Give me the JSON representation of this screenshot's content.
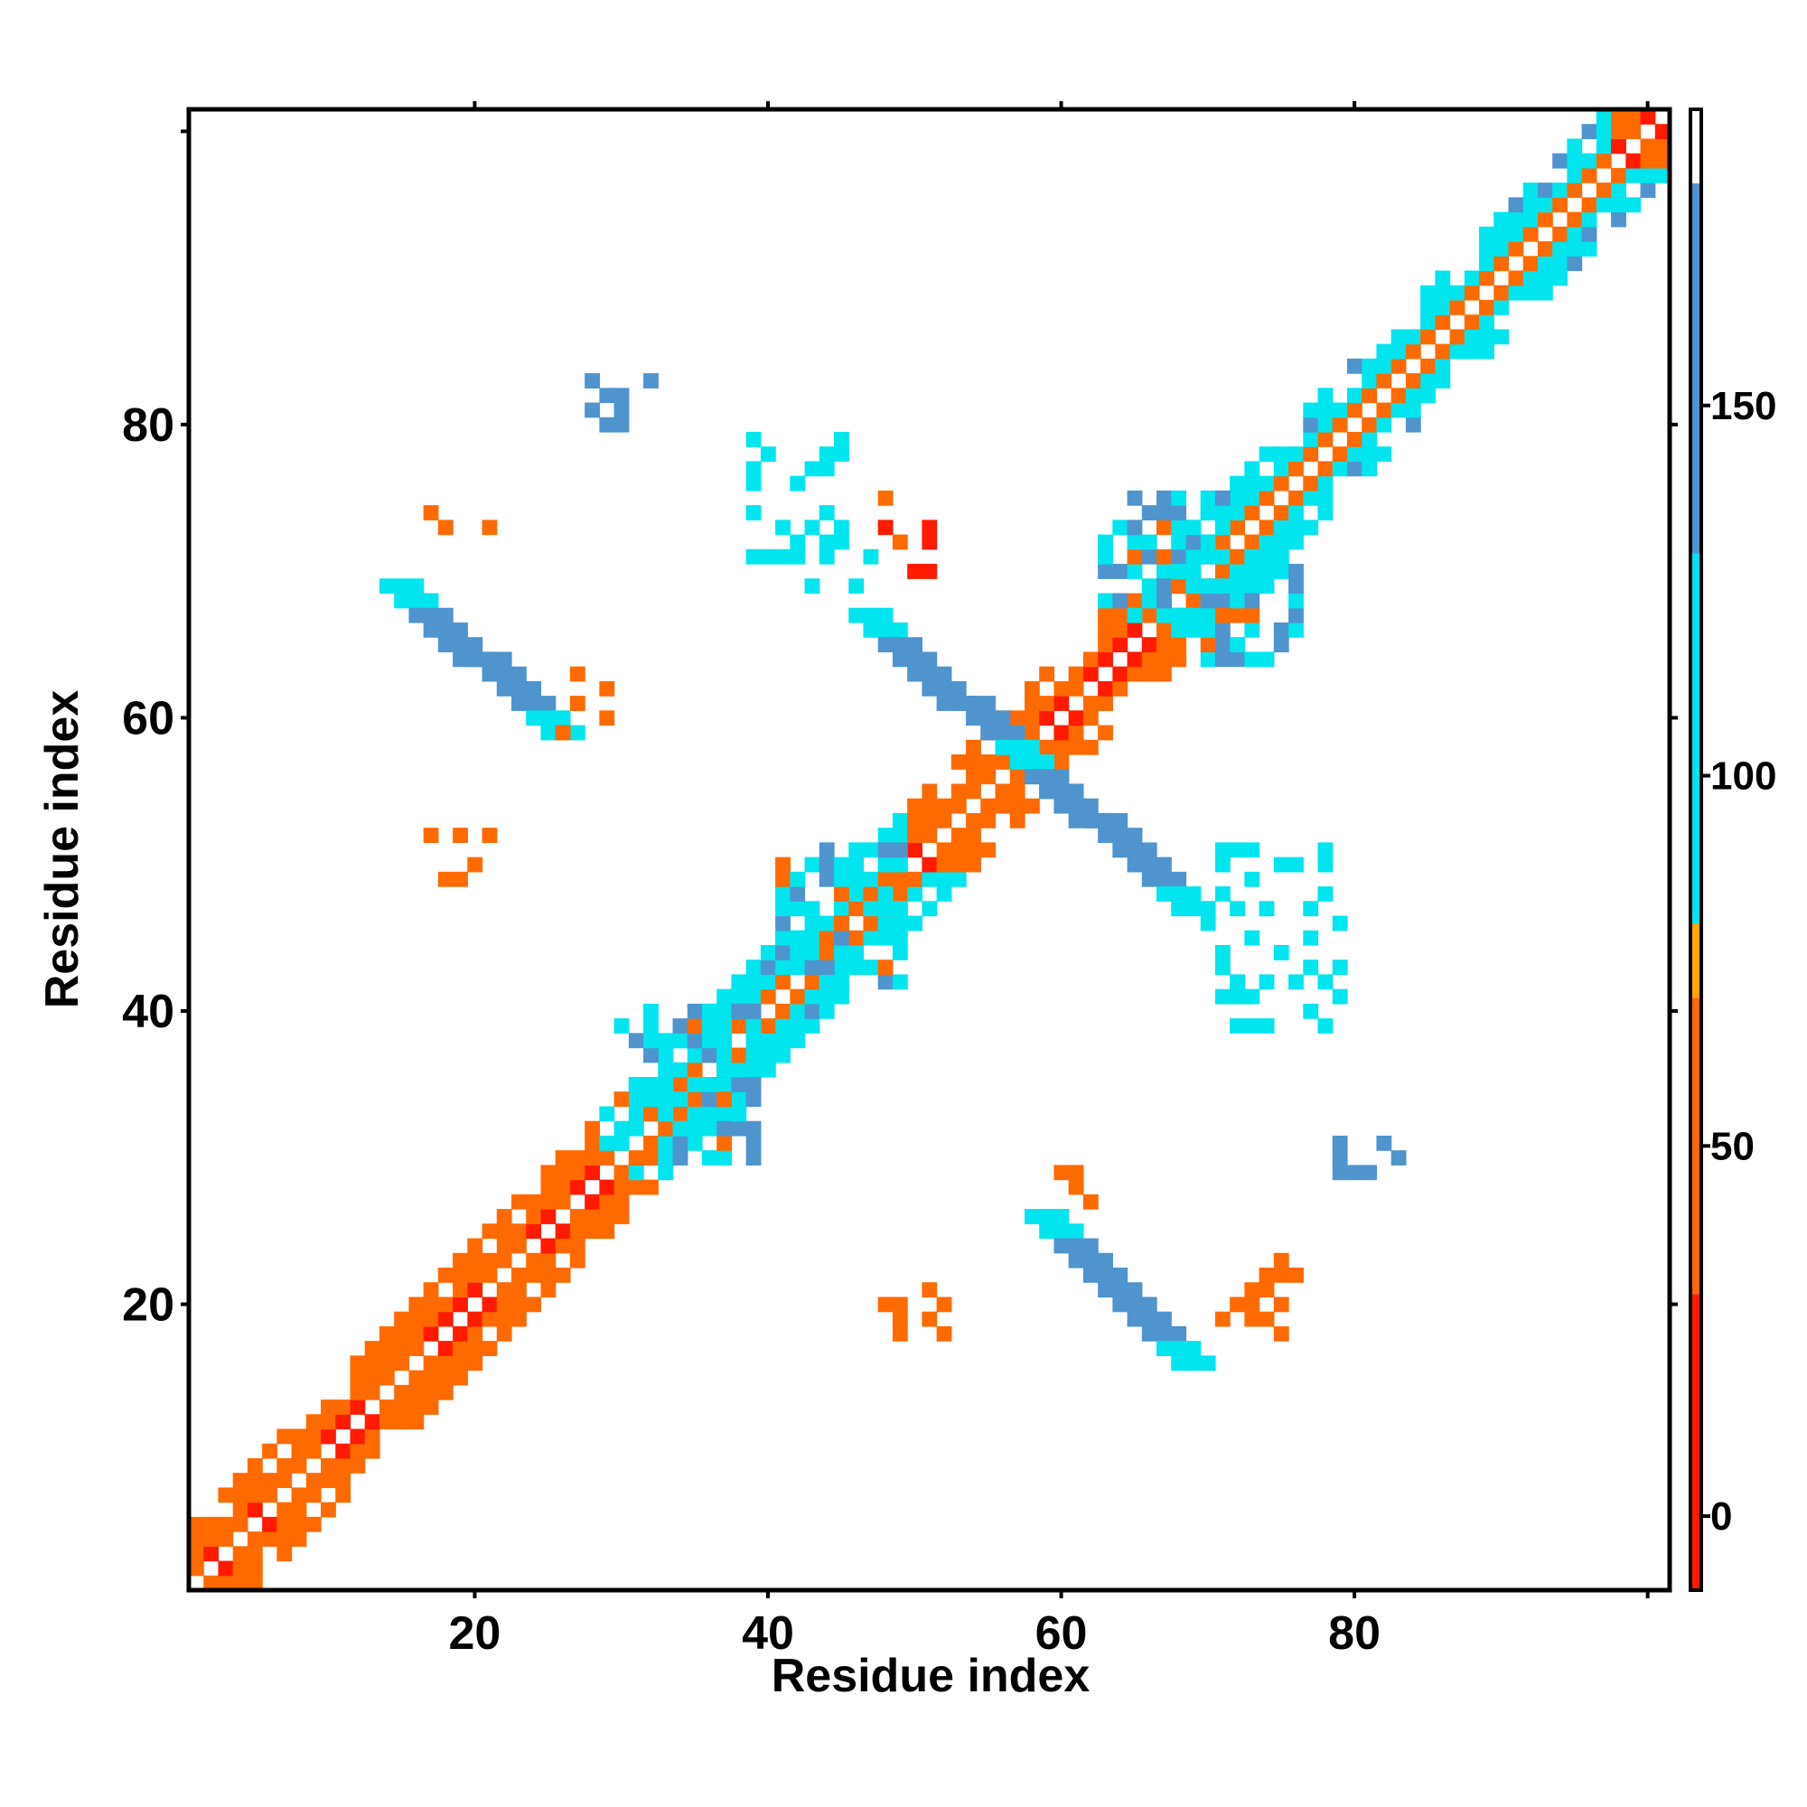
{
  "chart_data": {
    "type": "heatmap",
    "title": "",
    "xlabel": "Residue index",
    "ylabel": "Residue index",
    "xlim": [
      0.5,
      101.5
    ],
    "ylim": [
      0.5,
      101.5
    ],
    "x_ticks": [
      20,
      40,
      60,
      80
    ],
    "y_ticks": [
      20,
      40,
      60,
      80
    ],
    "x_tick_labels": [
      "20",
      "40",
      "60",
      "80"
    ],
    "y_tick_labels": [
      "20",
      "40",
      "60",
      "80"
    ],
    "colorbar": {
      "range": [
        -10,
        190
      ],
      "ticks": [
        0,
        50,
        100,
        150
      ],
      "tick_labels": [
        "0",
        "50",
        "100",
        "150"
      ],
      "bands": [
        {
          "from": -10,
          "to": 30,
          "color": "#ff1a00"
        },
        {
          "from": 30,
          "to": 70,
          "color": "#ff6a00"
        },
        {
          "from": 70,
          "to": 80,
          "color": "#ffa500"
        },
        {
          "from": 80,
          "to": 130,
          "color": "#00e5ee"
        },
        {
          "from": 130,
          "to": 180,
          "color": "#4f94cd"
        },
        {
          "from": 180,
          "to": 190,
          "color": "#ffffff"
        }
      ]
    },
    "grid": false,
    "cells": [
      {
        "x": [
          1,
          101
        ],
        "y": [
          1,
          101
        ],
        "value": 55,
        "pattern": "diagonal"
      },
      {
        "x": [
          15,
          26
        ],
        "y": [
          59,
          69
        ],
        "value": 150,
        "pattern": "antidiagonal-band"
      },
      {
        "x": [
          47,
          60
        ],
        "y": [
          55,
          67
        ],
        "value": 150,
        "pattern": "antidiagonal-band"
      },
      {
        "x": [
          57,
          69
        ],
        "y": [
          47,
          58
        ],
        "value": 150,
        "pattern": "antidiagonal-band"
      },
      {
        "x": [
          59,
          69
        ],
        "y": [
          16,
          26
        ],
        "value": 150,
        "pattern": "antidiagonal-band"
      },
      {
        "x": [
          30,
          39
        ],
        "y": [
          30,
          40
        ],
        "value": 110,
        "pattern": "block"
      },
      {
        "x": [
          41,
          49
        ],
        "y": [
          42,
          51
        ],
        "value": 110,
        "pattern": "block"
      },
      {
        "x": [
          63,
          71
        ],
        "y": [
          67,
          75
        ],
        "value": 110,
        "pattern": "block"
      },
      {
        "x": [
          70,
          76
        ],
        "y": [
          64,
          71
        ],
        "value": 110,
        "pattern": "block"
      },
      {
        "x": [
          28,
          32
        ],
        "y": [
          80,
          83
        ],
        "value": 140,
        "pattern": "scatter"
      },
      {
        "x": [
          39,
          47
        ],
        "y": [
          69,
          79
        ],
        "value": 110,
        "pattern": "scatter"
      },
      {
        "x": [
          47,
          51
        ],
        "y": [
          70,
          75
        ],
        "value": 30,
        "pattern": "scatter"
      },
      {
        "x": [
          17,
          22
        ],
        "y": [
          72,
          76
        ],
        "value": 50,
        "pattern": "scatter"
      },
      {
        "x": [
          17,
          21
        ],
        "y": [
          49,
          52
        ],
        "value": 50,
        "pattern": "scatter"
      },
      {
        "x": [
          48,
          52
        ],
        "y": [
          18,
          21
        ],
        "value": 50,
        "pattern": "scatter"
      },
      {
        "x": [
          71,
          76
        ],
        "y": [
          18,
          23
        ],
        "value": 50,
        "pattern": "scatter"
      },
      {
        "x": [
          79,
          83
        ],
        "y": [
          28,
          32
        ],
        "value": 140,
        "pattern": "scatter"
      },
      {
        "x": [
          70,
          79
        ],
        "y": [
          39,
          51
        ],
        "value": 110,
        "pattern": "scatter"
      },
      {
        "x": [
          60,
          62
        ],
        "y": [
          27,
          29
        ],
        "value": 60,
        "pattern": "scatter"
      },
      {
        "x": [
          26,
          29
        ],
        "y": [
          59,
          63
        ],
        "value": 50,
        "pattern": "scatter"
      }
    ]
  }
}
